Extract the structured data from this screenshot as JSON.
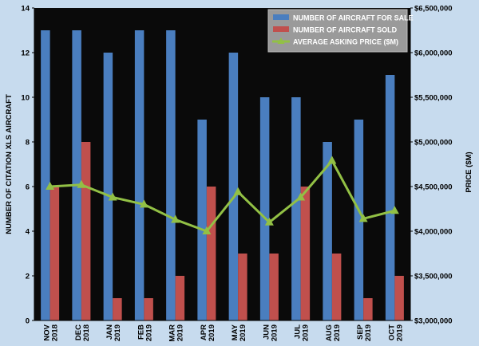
{
  "chart_data": {
    "type": "bar",
    "categories": [
      [
        "NOV",
        "2018"
      ],
      [
        "DEC",
        "2018"
      ],
      [
        "JAN",
        "2019"
      ],
      [
        "FEB",
        "2019"
      ],
      [
        "MAR",
        "2019"
      ],
      [
        "APR",
        "2019"
      ],
      [
        "MAY",
        "2019"
      ],
      [
        "JUN",
        "2019"
      ],
      [
        "JUL",
        "2019"
      ],
      [
        "AUG",
        "2019"
      ],
      [
        "SEP",
        "2019"
      ],
      [
        "OCT",
        "2019"
      ]
    ],
    "series": [
      {
        "name": "NUMBER OF AIRCRAFT FOR SALE",
        "type": "bar",
        "axis": "left",
        "color": "#4a7ebf",
        "values": [
          13,
          13,
          12,
          13,
          13,
          9,
          12,
          10,
          10,
          8,
          9,
          11
        ]
      },
      {
        "name": "NUMBER OF AIRCRAFT SOLD",
        "type": "bar",
        "axis": "left",
        "color": "#c0504d",
        "values": [
          6,
          8,
          1,
          1,
          2,
          6,
          3,
          3,
          6,
          3,
          1,
          2
        ]
      },
      {
        "name": "AVERAGE ASKING PRICE ($M)",
        "type": "line",
        "axis": "right",
        "color": "#92c045",
        "values": [
          4500000,
          4520000,
          4380000,
          4300000,
          4130000,
          4000000,
          4440000,
          4100000,
          4380000,
          4790000,
          4140000,
          4230000
        ]
      }
    ],
    "ylabel": "NUMBER OF CITATION XLS  AIRCRAFT",
    "y2label": "PRICE ($M)",
    "ylim": [
      0,
      14
    ],
    "ytick_step": 2,
    "y2lim": [
      3000000,
      6500000
    ],
    "y2tick_step": 500000,
    "y2_tick_labels": [
      "$3,000,000",
      "$3,500,000",
      "$4,000,000",
      "$4,500,000",
      "$5,000,000",
      "$5,500,000",
      "$6,000,000",
      "$6,500,000"
    ],
    "grid": false,
    "legend_position": "top-right",
    "plot_background": "#000000"
  }
}
